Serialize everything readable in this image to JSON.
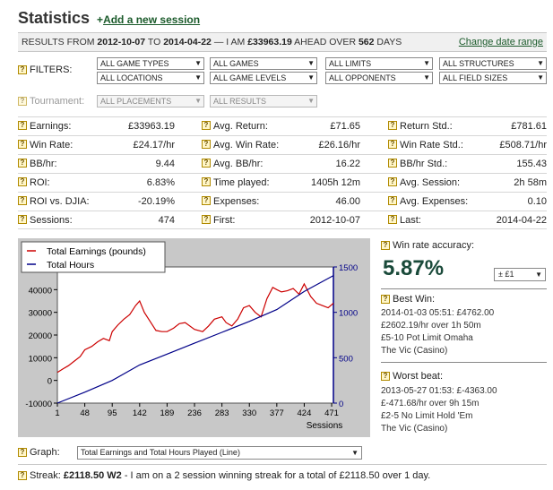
{
  "header": {
    "title": "Statistics",
    "add_plus": "+",
    "add_label": "Add a new session"
  },
  "results": {
    "prefix": "RESULTS FROM",
    "from": "2012-10-07",
    "to_word": "TO",
    "to": "2014-04-22",
    "dash": "— I AM",
    "amount": "£33963.19",
    "ahead": "AHEAD OVER",
    "days": "562",
    "days_word": "DAYS",
    "change_link": "Change date range"
  },
  "filters": {
    "label": "FILTERS:",
    "row1": [
      "ALL GAME TYPES",
      "ALL GAMES",
      "ALL LIMITS",
      "ALL STRUCTURES"
    ],
    "row2": [
      "ALL LOCATIONS",
      "ALL GAME LEVELS",
      "ALL OPPONENTS",
      "ALL FIELD SIZES"
    ],
    "tournament_label": "Tournament:",
    "tournament": [
      "ALL PLACEMENTS",
      "ALL RESULTS"
    ]
  },
  "stats": [
    [
      {
        "label": "Earnings:",
        "value": "£33963.19"
      },
      {
        "label": "Avg. Return:",
        "value": "£71.65"
      },
      {
        "label": "Return Std.:",
        "value": "£781.61"
      }
    ],
    [
      {
        "label": "Win Rate:",
        "value": "£24.17/hr"
      },
      {
        "label": "Avg. Win Rate:",
        "value": "£26.16/hr"
      },
      {
        "label": "Win Rate Std.:",
        "value": "£508.71/hr"
      }
    ],
    [
      {
        "label": "BB/hr:",
        "value": "9.44"
      },
      {
        "label": "Avg. BB/hr:",
        "value": "16.22"
      },
      {
        "label": "BB/hr Std.:",
        "value": "155.43"
      }
    ],
    [
      {
        "label": "ROI:",
        "value": "6.83%"
      },
      {
        "label": "Time played:",
        "value": "1405h 12m"
      },
      {
        "label": "Avg. Session:",
        "value": "2h 58m"
      }
    ],
    [
      {
        "label": "ROI vs. DJIA:",
        "value": "-20.19%"
      },
      {
        "label": "Expenses:",
        "value": "46.00"
      },
      {
        "label": "Avg. Expenses:",
        "value": "0.10"
      }
    ],
    [
      {
        "label": "Sessions:",
        "value": "474"
      },
      {
        "label": "First:",
        "value": "2012-10-07"
      },
      {
        "label": "Last:",
        "value": "2014-04-22"
      }
    ]
  ],
  "chart_data": {
    "type": "line",
    "title": "",
    "xlabel": "Sessions",
    "ylabel": "",
    "x_ticks": [
      1,
      48,
      95,
      142,
      189,
      236,
      283,
      330,
      377,
      424,
      471
    ],
    "y_left_ticks": [
      -10000,
      0,
      10000,
      20000,
      30000,
      40000
    ],
    "y_right_ticks": [
      0,
      500,
      1000,
      1500
    ],
    "xlim": [
      1,
      474
    ],
    "ylim_left": [
      -10000,
      50000
    ],
    "ylim_right": [
      0,
      1500
    ],
    "legend_placement": "top-left",
    "series": [
      {
        "name": "Total Earnings (pounds)",
        "axis": "left",
        "color": "#cc0000",
        "x": [
          1,
          10,
          20,
          30,
          40,
          48,
          60,
          70,
          80,
          90,
          95,
          105,
          115,
          125,
          135,
          142,
          150,
          160,
          170,
          180,
          189,
          200,
          210,
          220,
          236,
          250,
          260,
          270,
          283,
          290,
          300,
          310,
          320,
          330,
          340,
          350,
          360,
          370,
          377,
          385,
          395,
          405,
          415,
          424,
          435,
          445,
          455,
          465,
          474
        ],
        "y": [
          3500,
          5000,
          6500,
          8500,
          10500,
          13500,
          15000,
          17000,
          18500,
          17500,
          21500,
          24500,
          27000,
          29000,
          33000,
          35000,
          30000,
          26000,
          22000,
          21500,
          21500,
          23000,
          25000,
          25500,
          22500,
          21500,
          24000,
          27000,
          28000,
          25500,
          24000,
          27000,
          32000,
          33000,
          30000,
          28000,
          36000,
          41000,
          40000,
          39000,
          39500,
          40500,
          38000,
          42500,
          37000,
          34000,
          33000,
          32000,
          34000
        ]
      },
      {
        "name": "Total Hours",
        "axis": "right",
        "color": "#000088",
        "x": [
          1,
          48,
          95,
          142,
          189,
          236,
          283,
          330,
          377,
          424,
          474
        ],
        "y": [
          0,
          120,
          250,
          420,
          540,
          660,
          780,
          900,
          1030,
          1230,
          1405
        ]
      }
    ]
  },
  "right": {
    "wr_label": "Win rate accuracy:",
    "wr_value": "5.87%",
    "pm_select": "± £1",
    "best_title": "Best Win:",
    "best_lines": [
      "2014-01-03 05:51: £4762.00",
      "£2602.19/hr over 1h 50m",
      "£5-10 Pot Limit Omaha",
      "The Vic (Casino)"
    ],
    "worst_title": "Worst beat:",
    "worst_lines": [
      "2013-05-27 01:53: £-4363.00",
      "£-471.68/hr over 9h 15m",
      "£2-5 No Limit Hold 'Em",
      "The Vic (Casino)"
    ]
  },
  "graph": {
    "label": "Graph:",
    "selected": "Total Earnings and Total Hours Played (Line)"
  },
  "streak": {
    "label": "Streak:",
    "value": "£2118.50 W2",
    "text": " - I am on a 2 session winning streak for a total of £2118.50 over 1 day."
  },
  "icons": {
    "help": "question-icon",
    "dropdown": "chevron-down-icon"
  }
}
